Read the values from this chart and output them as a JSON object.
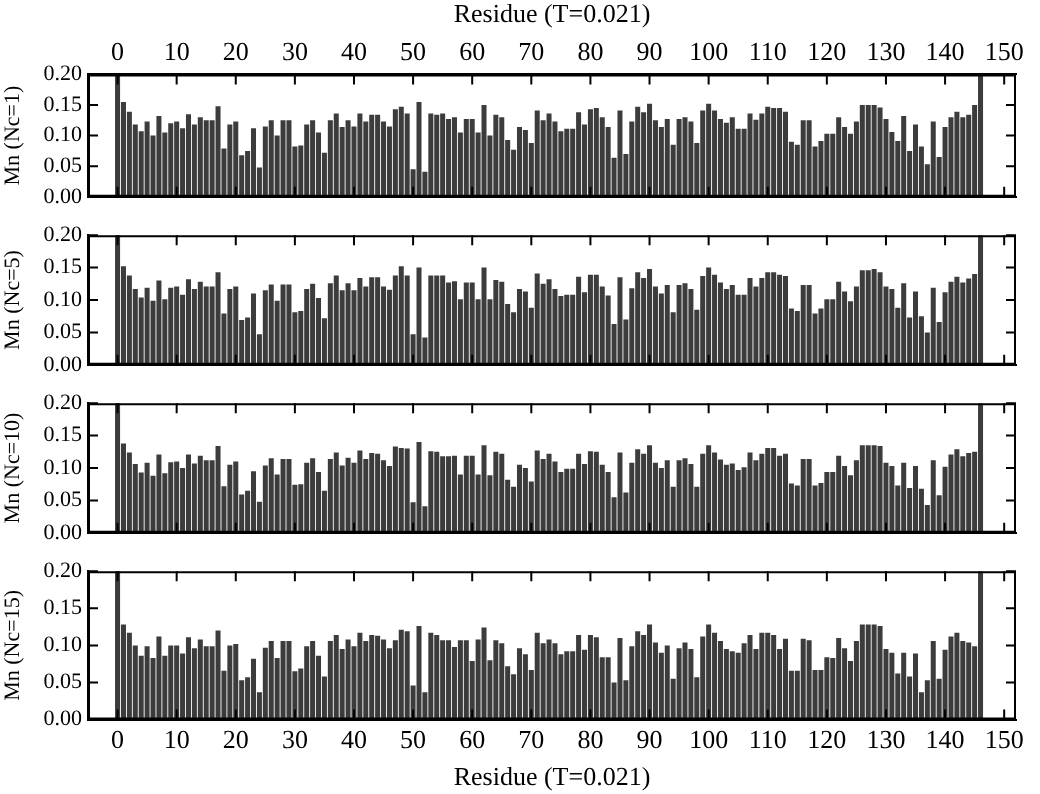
{
  "chart_data": [
    {
      "type": "bar",
      "ylabel": "Mn (Nc=1)",
      "x2label": "Residue (T=0.021)",
      "tick_labels": "y",
      "xlim": [
        -5,
        152
      ],
      "xticks": [
        {
          "value": 0,
          "label": null
        },
        {
          "value": 10,
          "label": null
        },
        {
          "value": 20,
          "label": null
        },
        {
          "value": 30,
          "label": null
        },
        {
          "value": 40,
          "label": null
        },
        {
          "value": 50,
          "label": null
        },
        {
          "value": 60,
          "label": null
        },
        {
          "value": 70,
          "label": null
        },
        {
          "value": 80,
          "label": null
        },
        {
          "value": 90,
          "label": null
        },
        {
          "value": 100,
          "label": null
        },
        {
          "value": 110,
          "label": null
        },
        {
          "value": 120,
          "label": null
        },
        {
          "value": 130,
          "label": null
        },
        {
          "value": 140,
          "label": null
        },
        {
          "value": 150,
          "label": null
        }
      ],
      "x2lim": [
        -5,
        152
      ],
      "x2ticks": [
        0,
        10,
        20,
        30,
        40,
        50,
        60,
        70,
        80,
        90,
        100,
        110,
        120,
        130,
        140,
        150
      ],
      "ylim": [
        0,
        0.2
      ],
      "yticks": [
        {
          "value": 0,
          "label": "0.00"
        },
        {
          "value": 0.05,
          "label": "0.05"
        },
        {
          "value": 0.1,
          "label": "0.10"
        },
        {
          "value": 0.15,
          "label": "0.15"
        },
        {
          "value": 0.2,
          "label": "0.20"
        }
      ],
      "grid": false,
      "legend": false,
      "x": [
        0,
        1,
        2,
        3,
        4,
        5,
        6,
        7,
        8,
        9,
        10,
        11,
        12,
        13,
        14,
        15,
        16,
        17,
        18,
        19,
        20,
        21,
        22,
        23,
        24,
        25,
        26,
        27,
        28,
        29,
        30,
        31,
        32,
        33,
        34,
        35,
        36,
        37,
        38,
        39,
        40,
        41,
        42,
        43,
        44,
        45,
        46,
        47,
        48,
        49,
        50,
        51,
        52,
        53,
        54,
        55,
        56,
        57,
        58,
        59,
        60,
        61,
        62,
        63,
        64,
        65,
        66,
        67,
        68,
        69,
        70,
        71,
        72,
        73,
        74,
        75,
        76,
        77,
        78,
        79,
        80,
        81,
        82,
        83,
        84,
        85,
        86,
        87,
        88,
        89,
        90,
        91,
        92,
        93,
        94,
        95,
        96,
        97,
        98,
        99,
        100,
        101,
        102,
        103,
        104,
        105,
        106,
        107,
        108,
        109,
        110,
        111,
        112,
        113,
        114,
        115,
        116,
        117,
        118,
        119,
        120,
        121,
        122,
        123,
        124,
        125,
        126,
        127,
        128,
        129,
        130,
        131,
        132,
        133,
        134,
        135,
        136,
        137,
        138,
        139,
        140,
        141,
        142,
        143,
        144,
        145,
        146
      ],
      "series": [
        {
          "color": "#3c3c3c",
          "values": [
            0.2,
            0.155,
            0.139,
            0.118,
            0.107,
            0.123,
            0.1,
            0.132,
            0.105,
            0.12,
            0.123,
            0.112,
            0.135,
            0.118,
            0.13,
            0.125,
            0.125,
            0.148,
            0.079,
            0.118,
            0.123,
            0.068,
            0.075,
            0.112,
            0.048,
            0.115,
            0.125,
            0.1,
            0.125,
            0.125,
            0.082,
            0.084,
            0.118,
            0.125,
            0.105,
            0.072,
            0.125,
            0.136,
            0.114,
            0.125,
            0.115,
            0.136,
            0.123,
            0.134,
            0.134,
            0.123,
            0.115,
            0.143,
            0.147,
            0.136,
            0.045,
            0.155,
            0.041,
            0.136,
            0.134,
            0.136,
            0.127,
            0.13,
            0.105,
            0.127,
            0.127,
            0.105,
            0.15,
            0.1,
            0.134,
            0.13,
            0.093,
            0.077,
            0.114,
            0.109,
            0.088,
            0.141,
            0.125,
            0.136,
            0.123,
            0.107,
            0.111,
            0.111,
            0.138,
            0.118,
            0.143,
            0.145,
            0.13,
            0.114,
            0.064,
            0.141,
            0.07,
            0.123,
            0.147,
            0.138,
            0.152,
            0.125,
            0.114,
            0.127,
            0.085,
            0.127,
            0.13,
            0.123,
            0.088,
            0.141,
            0.152,
            0.141,
            0.127,
            0.121,
            0.13,
            0.111,
            0.111,
            0.136,
            0.126,
            0.136,
            0.147,
            0.145,
            0.145,
            0.139,
            0.09,
            0.085,
            0.125,
            0.125,
            0.082,
            0.091,
            0.103,
            0.103,
            0.13,
            0.114,
            0.103,
            0.123,
            0.15,
            0.15,
            0.15,
            0.146,
            0.127,
            0.106,
            0.091,
            0.132,
            0.075,
            0.118,
            0.082,
            0.053,
            0.123,
            0.065,
            0.114,
            0.13,
            0.139,
            0.13,
            0.134,
            0.15,
            0.2
          ]
        }
      ]
    },
    {
      "type": "bar",
      "ylabel": "Mn (Nc=5)",
      "tick_labels": "y",
      "xlim": [
        -5,
        152
      ],
      "xticks": [
        {
          "value": 0,
          "label": null
        },
        {
          "value": 10,
          "label": null
        },
        {
          "value": 20,
          "label": null
        },
        {
          "value": 30,
          "label": null
        },
        {
          "value": 40,
          "label": null
        },
        {
          "value": 50,
          "label": null
        },
        {
          "value": 60,
          "label": null
        },
        {
          "value": 70,
          "label": null
        },
        {
          "value": 80,
          "label": null
        },
        {
          "value": 90,
          "label": null
        },
        {
          "value": 100,
          "label": null
        },
        {
          "value": 110,
          "label": null
        },
        {
          "value": 120,
          "label": null
        },
        {
          "value": 130,
          "label": null
        },
        {
          "value": 140,
          "label": null
        },
        {
          "value": 150,
          "label": null
        }
      ],
      "ylim": [
        0,
        0.2
      ],
      "yticks": [
        {
          "value": 0,
          "label": "0.00"
        },
        {
          "value": 0.05,
          "label": "0.05"
        },
        {
          "value": 0.1,
          "label": "0.10"
        },
        {
          "value": 0.15,
          "label": "0.15"
        },
        {
          "value": 0.2,
          "label": "0.20"
        }
      ],
      "grid": false,
      "legend": false,
      "x": [
        0,
        1,
        2,
        3,
        4,
        5,
        6,
        7,
        8,
        9,
        10,
        11,
        12,
        13,
        14,
        15,
        16,
        17,
        18,
        19,
        20,
        21,
        22,
        23,
        24,
        25,
        26,
        27,
        28,
        29,
        30,
        31,
        32,
        33,
        34,
        35,
        36,
        37,
        38,
        39,
        40,
        41,
        42,
        43,
        44,
        45,
        46,
        47,
        48,
        49,
        50,
        51,
        52,
        53,
        54,
        55,
        56,
        57,
        58,
        59,
        60,
        61,
        62,
        63,
        64,
        65,
        66,
        67,
        68,
        69,
        70,
        71,
        72,
        73,
        74,
        75,
        76,
        77,
        78,
        79,
        80,
        81,
        82,
        83,
        84,
        85,
        86,
        87,
        88,
        89,
        90,
        91,
        92,
        93,
        94,
        95,
        96,
        97,
        98,
        99,
        100,
        101,
        102,
        103,
        104,
        105,
        106,
        107,
        108,
        109,
        110,
        111,
        112,
        113,
        114,
        115,
        116,
        117,
        118,
        119,
        120,
        121,
        122,
        123,
        124,
        125,
        126,
        127,
        128,
        129,
        130,
        131,
        132,
        133,
        134,
        135,
        136,
        137,
        138,
        139,
        140,
        141,
        142,
        143,
        144,
        145,
        146
      ],
      "series": [
        {
          "color": "#3c3c3c",
          "values": [
            0.2,
            0.152,
            0.138,
            0.117,
            0.104,
            0.119,
            0.099,
            0.13,
            0.101,
            0.119,
            0.121,
            0.108,
            0.132,
            0.117,
            0.128,
            0.121,
            0.121,
            0.143,
            0.079,
            0.117,
            0.121,
            0.069,
            0.073,
            0.11,
            0.047,
            0.115,
            0.124,
            0.099,
            0.124,
            0.124,
            0.081,
            0.083,
            0.117,
            0.125,
            0.103,
            0.072,
            0.126,
            0.138,
            0.115,
            0.126,
            0.115,
            0.134,
            0.121,
            0.135,
            0.135,
            0.121,
            0.116,
            0.138,
            0.152,
            0.138,
            0.047,
            0.15,
            0.042,
            0.138,
            0.138,
            0.138,
            0.127,
            0.129,
            0.101,
            0.127,
            0.127,
            0.101,
            0.15,
            0.101,
            0.131,
            0.128,
            0.094,
            0.081,
            0.117,
            0.113,
            0.088,
            0.141,
            0.125,
            0.132,
            0.117,
            0.106,
            0.108,
            0.108,
            0.136,
            0.112,
            0.139,
            0.139,
            0.121,
            0.107,
            0.063,
            0.135,
            0.07,
            0.118,
            0.143,
            0.134,
            0.148,
            0.121,
            0.11,
            0.123,
            0.081,
            0.123,
            0.126,
            0.117,
            0.085,
            0.137,
            0.15,
            0.139,
            0.127,
            0.117,
            0.123,
            0.108,
            0.108,
            0.134,
            0.121,
            0.134,
            0.143,
            0.143,
            0.139,
            0.137,
            0.087,
            0.083,
            0.123,
            0.123,
            0.079,
            0.087,
            0.101,
            0.101,
            0.128,
            0.113,
            0.098,
            0.121,
            0.146,
            0.146,
            0.148,
            0.143,
            0.121,
            0.117,
            0.088,
            0.126,
            0.073,
            0.113,
            0.075,
            0.05,
            0.119,
            0.066,
            0.112,
            0.128,
            0.136,
            0.127,
            0.133,
            0.14,
            0.2
          ]
        }
      ]
    },
    {
      "type": "bar",
      "ylabel": "Mn (Nc=10)",
      "tick_labels": "y",
      "xlim": [
        -5,
        152
      ],
      "xticks": [
        {
          "value": 0,
          "label": null
        },
        {
          "value": 10,
          "label": null
        },
        {
          "value": 20,
          "label": null
        },
        {
          "value": 30,
          "label": null
        },
        {
          "value": 40,
          "label": null
        },
        {
          "value": 50,
          "label": null
        },
        {
          "value": 60,
          "label": null
        },
        {
          "value": 70,
          "label": null
        },
        {
          "value": 80,
          "label": null
        },
        {
          "value": 90,
          "label": null
        },
        {
          "value": 100,
          "label": null
        },
        {
          "value": 110,
          "label": null
        },
        {
          "value": 120,
          "label": null
        },
        {
          "value": 130,
          "label": null
        },
        {
          "value": 140,
          "label": null
        },
        {
          "value": 150,
          "label": null
        }
      ],
      "ylim": [
        0,
        0.2
      ],
      "yticks": [
        {
          "value": 0,
          "label": "0.00"
        },
        {
          "value": 0.05,
          "label": "0.05"
        },
        {
          "value": 0.1,
          "label": "0.10"
        },
        {
          "value": 0.15,
          "label": "0.15"
        },
        {
          "value": 0.2,
          "label": "0.20"
        }
      ],
      "grid": false,
      "legend": false,
      "x": [
        0,
        1,
        2,
        3,
        4,
        5,
        6,
        7,
        8,
        9,
        10,
        11,
        12,
        13,
        14,
        15,
        16,
        17,
        18,
        19,
        20,
        21,
        22,
        23,
        24,
        25,
        26,
        27,
        28,
        29,
        30,
        31,
        32,
        33,
        34,
        35,
        36,
        37,
        38,
        39,
        40,
        41,
        42,
        43,
        44,
        45,
        46,
        47,
        48,
        49,
        50,
        51,
        52,
        53,
        54,
        55,
        56,
        57,
        58,
        59,
        60,
        61,
        62,
        63,
        64,
        65,
        66,
        67,
        68,
        69,
        70,
        71,
        72,
        73,
        74,
        75,
        76,
        77,
        78,
        79,
        80,
        81,
        82,
        83,
        84,
        85,
        86,
        87,
        88,
        89,
        90,
        91,
        92,
        93,
        94,
        95,
        96,
        97,
        98,
        99,
        100,
        101,
        102,
        103,
        104,
        105,
        106,
        107,
        108,
        109,
        110,
        111,
        112,
        113,
        114,
        115,
        116,
        117,
        118,
        119,
        120,
        121,
        122,
        123,
        124,
        125,
        126,
        127,
        128,
        129,
        130,
        131,
        132,
        133,
        134,
        135,
        136,
        137,
        138,
        139,
        140,
        141,
        142,
        143,
        144,
        145,
        146
      ],
      "series": [
        {
          "color": "#3c3c3c",
          "values": [
            0.2,
            0.138,
            0.124,
            0.106,
            0.093,
            0.108,
            0.088,
            0.121,
            0.092,
            0.109,
            0.11,
            0.1,
            0.121,
            0.107,
            0.119,
            0.112,
            0.112,
            0.134,
            0.072,
            0.105,
            0.11,
            0.059,
            0.065,
            0.095,
            0.048,
            0.104,
            0.115,
            0.09,
            0.114,
            0.114,
            0.074,
            0.075,
            0.108,
            0.115,
            0.094,
            0.065,
            0.114,
            0.124,
            0.104,
            0.116,
            0.108,
            0.127,
            0.114,
            0.123,
            0.122,
            0.112,
            0.103,
            0.133,
            0.131,
            0.13,
            0.047,
            0.14,
            0.041,
            0.126,
            0.125,
            0.118,
            0.118,
            0.119,
            0.09,
            0.119,
            0.119,
            0.09,
            0.135,
            0.089,
            0.125,
            0.122,
            0.082,
            0.071,
            0.105,
            0.1,
            0.079,
            0.127,
            0.114,
            0.122,
            0.11,
            0.094,
            0.099,
            0.099,
            0.122,
            0.106,
            0.126,
            0.125,
            0.105,
            0.094,
            0.055,
            0.124,
            0.062,
            0.108,
            0.129,
            0.122,
            0.135,
            0.108,
            0.1,
            0.112,
            0.071,
            0.112,
            0.115,
            0.106,
            0.071,
            0.122,
            0.135,
            0.124,
            0.113,
            0.105,
            0.107,
            0.097,
            0.101,
            0.124,
            0.112,
            0.122,
            0.131,
            0.131,
            0.119,
            0.122,
            0.076,
            0.073,
            0.114,
            0.114,
            0.073,
            0.077,
            0.094,
            0.094,
            0.119,
            0.103,
            0.089,
            0.112,
            0.135,
            0.135,
            0.135,
            0.134,
            0.108,
            0.103,
            0.073,
            0.108,
            0.069,
            0.103,
            0.068,
            0.043,
            0.112,
            0.058,
            0.102,
            0.121,
            0.129,
            0.118,
            0.123,
            0.125,
            0.2
          ]
        }
      ]
    },
    {
      "type": "bar",
      "ylabel": "Mn (Nc=15)",
      "xlabel": "Residue (T=0.021)",
      "xlim": [
        -5,
        152
      ],
      "xticks": [
        0,
        10,
        20,
        30,
        40,
        50,
        60,
        70,
        80,
        90,
        100,
        110,
        120,
        130,
        140,
        150
      ],
      "ylim": [
        0,
        0.2
      ],
      "yticks": [
        {
          "value": 0,
          "label": "0.00"
        },
        {
          "value": 0.05,
          "label": "0.05"
        },
        {
          "value": 0.1,
          "label": "0.10"
        },
        {
          "value": 0.15,
          "label": "0.15"
        },
        {
          "value": 0.2,
          "label": "0.20"
        }
      ],
      "grid": false,
      "legend": false,
      "x": [
        0,
        1,
        2,
        3,
        4,
        5,
        6,
        7,
        8,
        9,
        10,
        11,
        12,
        13,
        14,
        15,
        16,
        17,
        18,
        19,
        20,
        21,
        22,
        23,
        24,
        25,
        26,
        27,
        28,
        29,
        30,
        31,
        32,
        33,
        34,
        35,
        36,
        37,
        38,
        39,
        40,
        41,
        42,
        43,
        44,
        45,
        46,
        47,
        48,
        49,
        50,
        51,
        52,
        53,
        54,
        55,
        56,
        57,
        58,
        59,
        60,
        61,
        62,
        63,
        64,
        65,
        66,
        67,
        68,
        69,
        70,
        71,
        72,
        73,
        74,
        75,
        76,
        77,
        78,
        79,
        80,
        81,
        82,
        83,
        84,
        85,
        86,
        87,
        88,
        89,
        90,
        91,
        92,
        93,
        94,
        95,
        96,
        97,
        98,
        99,
        100,
        101,
        102,
        103,
        104,
        105,
        106,
        107,
        108,
        109,
        110,
        111,
        112,
        113,
        114,
        115,
        116,
        117,
        118,
        119,
        120,
        121,
        122,
        123,
        124,
        125,
        126,
        127,
        128,
        129,
        130,
        131,
        132,
        133,
        134,
        135,
        136,
        137,
        138,
        139,
        140,
        141,
        142,
        143,
        144,
        145,
        146
      ],
      "series": [
        {
          "color": "#3c3c3c",
          "values": [
            0.2,
            0.128,
            0.117,
            0.1,
            0.086,
            0.099,
            0.083,
            0.112,
            0.086,
            0.1,
            0.1,
            0.089,
            0.111,
            0.096,
            0.108,
            0.099,
            0.099,
            0.12,
            0.066,
            0.1,
            0.102,
            0.053,
            0.057,
            0.082,
            0.037,
            0.097,
            0.106,
            0.083,
            0.106,
            0.106,
            0.065,
            0.069,
            0.099,
            0.106,
            0.086,
            0.058,
            0.106,
            0.114,
            0.095,
            0.108,
            0.099,
            0.117,
            0.106,
            0.114,
            0.113,
            0.108,
            0.096,
            0.107,
            0.121,
            0.119,
            0.046,
            0.126,
            0.037,
            0.117,
            0.114,
            0.107,
            0.107,
            0.098,
            0.107,
            0.107,
            0.079,
            0.108,
            0.124,
            0.08,
            0.107,
            0.103,
            0.072,
            0.061,
            0.096,
            0.088,
            0.067,
            0.117,
            0.103,
            0.108,
            0.103,
            0.088,
            0.092,
            0.092,
            0.114,
            0.094,
            0.114,
            0.111,
            0.084,
            0.084,
            0.05,
            0.11,
            0.053,
            0.099,
            0.119,
            0.114,
            0.128,
            0.104,
            0.09,
            0.1,
            0.055,
            0.096,
            0.104,
            0.095,
            0.057,
            0.112,
            0.128,
            0.117,
            0.106,
            0.095,
            0.092,
            0.09,
            0.103,
            0.114,
            0.095,
            0.117,
            0.117,
            0.114,
            0.095,
            0.109,
            0.066,
            0.066,
            0.109,
            0.107,
            0.067,
            0.067,
            0.084,
            0.083,
            0.11,
            0.096,
            0.079,
            0.106,
            0.128,
            0.128,
            0.128,
            0.126,
            0.095,
            0.09,
            0.062,
            0.09,
            0.058,
            0.089,
            0.037,
            0.053,
            0.106,
            0.055,
            0.094,
            0.112,
            0.117,
            0.106,
            0.104,
            0.099,
            0.2
          ]
        }
      ]
    }
  ]
}
